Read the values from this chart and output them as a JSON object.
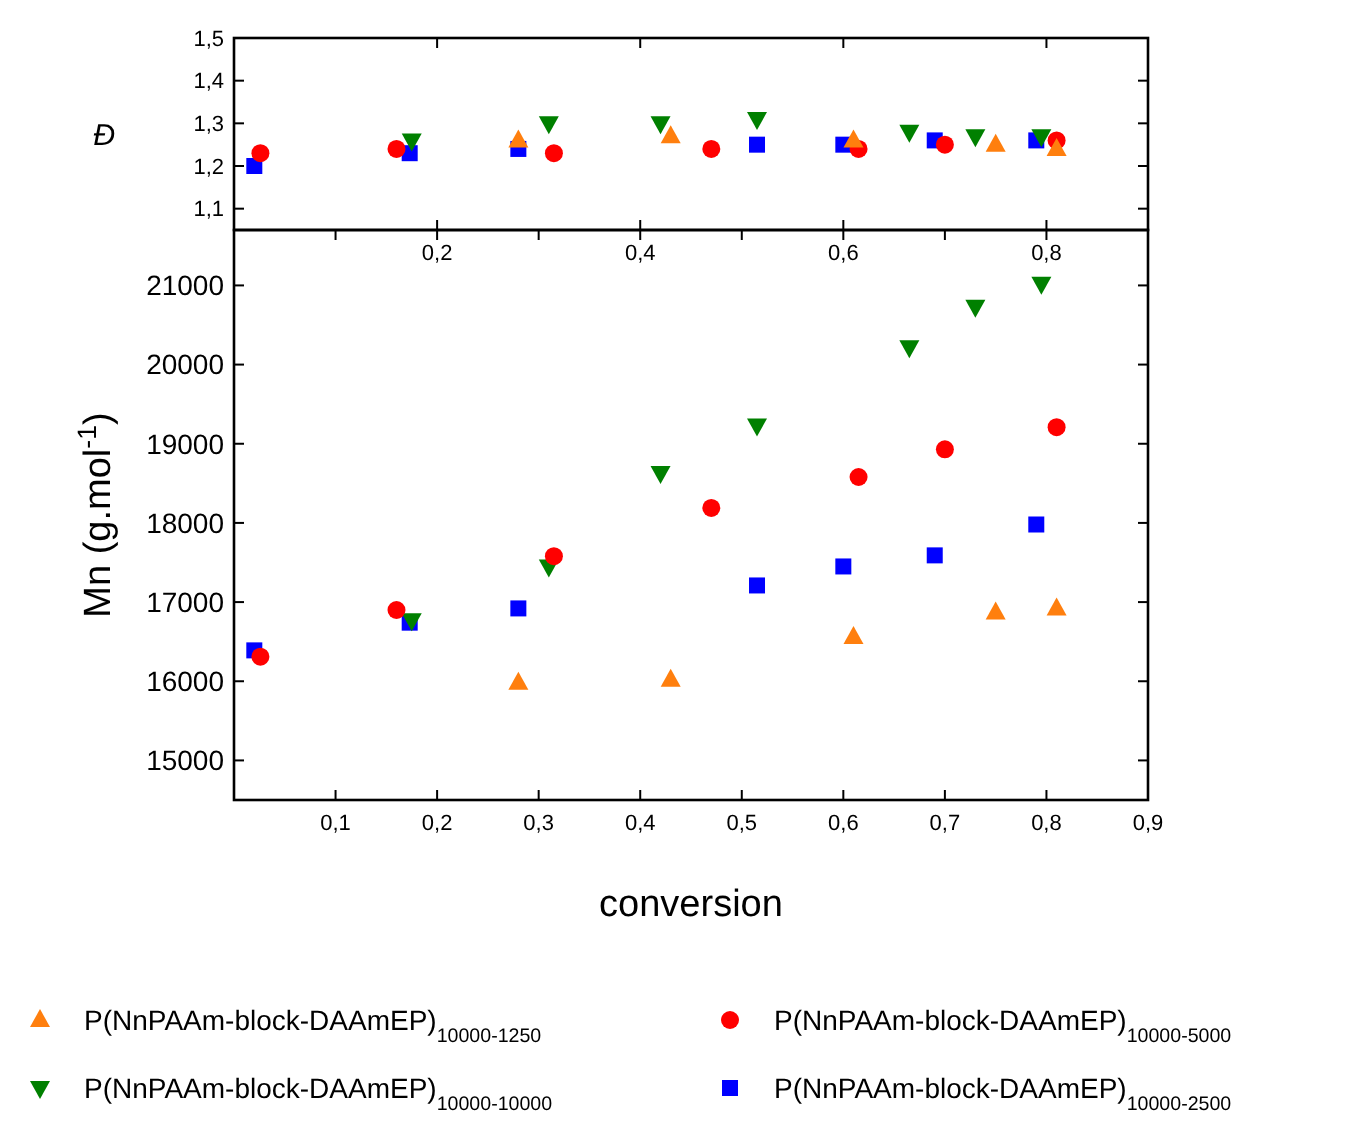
{
  "chart_data": [
    {
      "type": "scatter",
      "ylabel": "Đ",
      "xlim": [
        0,
        0.9
      ],
      "ylim": [
        1.05,
        1.5
      ],
      "xticks": [
        {
          "value": 0.2,
          "label": "0,2"
        },
        {
          "value": 0.4,
          "label": "0,4"
        },
        {
          "value": 0.6,
          "label": "0,6"
        },
        {
          "value": 0.8,
          "label": "0,8"
        }
      ],
      "yticks": [
        {
          "value": 1.1,
          "label": "1,1"
        },
        {
          "value": 1.2,
          "label": "1,2"
        },
        {
          "value": 1.3,
          "label": "1,3"
        },
        {
          "value": 1.4,
          "label": "1,4"
        },
        {
          "value": 1.5,
          "label": "1,5"
        }
      ],
      "grid": false,
      "legend": false,
      "series": [
        {
          "color": "#ff7f0e",
          "marker": "triangle",
          "x": [
            0.28,
            0.43,
            0.61,
            0.75,
            0.81
          ],
          "values": [
            1.26,
            1.27,
            1.26,
            1.25,
            1.24
          ]
        },
        {
          "color": "#ff0000",
          "marker": "circle",
          "x": [
            0.026,
            0.16,
            0.315,
            0.47,
            0.615,
            0.7,
            0.81
          ],
          "values": [
            1.23,
            1.24,
            1.23,
            1.24,
            1.24,
            1.25,
            1.26
          ]
        },
        {
          "color": "#008000",
          "marker": "triangle-down",
          "x": [
            0.175,
            0.31,
            0.42,
            0.515,
            0.665,
            0.73,
            0.795
          ],
          "values": [
            1.26,
            1.3,
            1.3,
            1.31,
            1.28,
            1.27,
            1.27
          ]
        },
        {
          "color": "#0000ff",
          "marker": "square",
          "x": [
            0.02,
            0.173,
            0.28,
            0.515,
            0.6,
            0.69,
            0.79
          ],
          "values": [
            1.2,
            1.23,
            1.24,
            1.25,
            1.25,
            1.26,
            1.26
          ]
        }
      ]
    },
    {
      "type": "scatter",
      "xlabel": "conversion",
      "ylabel": "Mn (g.mol$^{-1}$)",
      "xlim": [
        0,
        0.9
      ],
      "ylim": [
        14500,
        21700
      ],
      "xticks": [
        {
          "value": 0.1,
          "label": "0,1"
        },
        {
          "value": 0.2,
          "label": "0,2"
        },
        {
          "value": 0.3,
          "label": "0,3"
        },
        {
          "value": 0.4,
          "label": "0,4"
        },
        {
          "value": 0.5,
          "label": "0,5"
        },
        {
          "value": 0.6,
          "label": "0,6"
        },
        {
          "value": 0.7,
          "label": "0,7"
        },
        {
          "value": 0.8,
          "label": "0,8"
        },
        {
          "value": 0.9,
          "label": "0,9"
        }
      ],
      "yticks": [
        15000,
        16000,
        17000,
        18000,
        19000,
        20000,
        21000
      ],
      "grid": false,
      "legend": "bottom",
      "series": [
        {
          "name": "P(NnPAAm-block-DAAmEP)$_{10000-1250}$",
          "color": "#ff7f0e",
          "marker": "triangle",
          "x": [
            0.28,
            0.43,
            0.61,
            0.75,
            0.81
          ],
          "values": [
            15980,
            16020,
            16560,
            16870,
            16920
          ]
        },
        {
          "name": "P(NnPAAm-block-DAAmEP)$_{10000-5000}$",
          "color": "#ff0000",
          "marker": "circle",
          "x": [
            0.026,
            0.16,
            0.315,
            0.47,
            0.615,
            0.7,
            0.81
          ],
          "values": [
            16310,
            16900,
            17580,
            18190,
            18580,
            18930,
            19210
          ]
        },
        {
          "name": "P(NnPAAm-block-DAAmEP)$_{10000-10000}$",
          "color": "#008000",
          "marker": "triangle-down",
          "x": [
            0.175,
            0.31,
            0.42,
            0.515,
            0.665,
            0.73,
            0.795
          ],
          "values": [
            16770,
            17450,
            18630,
            19230,
            20220,
            20730,
            21020
          ]
        },
        {
          "name": "P(NnPAAm-block-DAAmEP)$_{10000-2500}$",
          "color": "#0000ff",
          "marker": "square",
          "x": [
            0.02,
            0.173,
            0.28,
            0.515,
            0.6,
            0.69,
            0.79
          ],
          "values": [
            16390,
            16740,
            16920,
            17210,
            17450,
            17590,
            17980
          ]
        }
      ]
    }
  ]
}
